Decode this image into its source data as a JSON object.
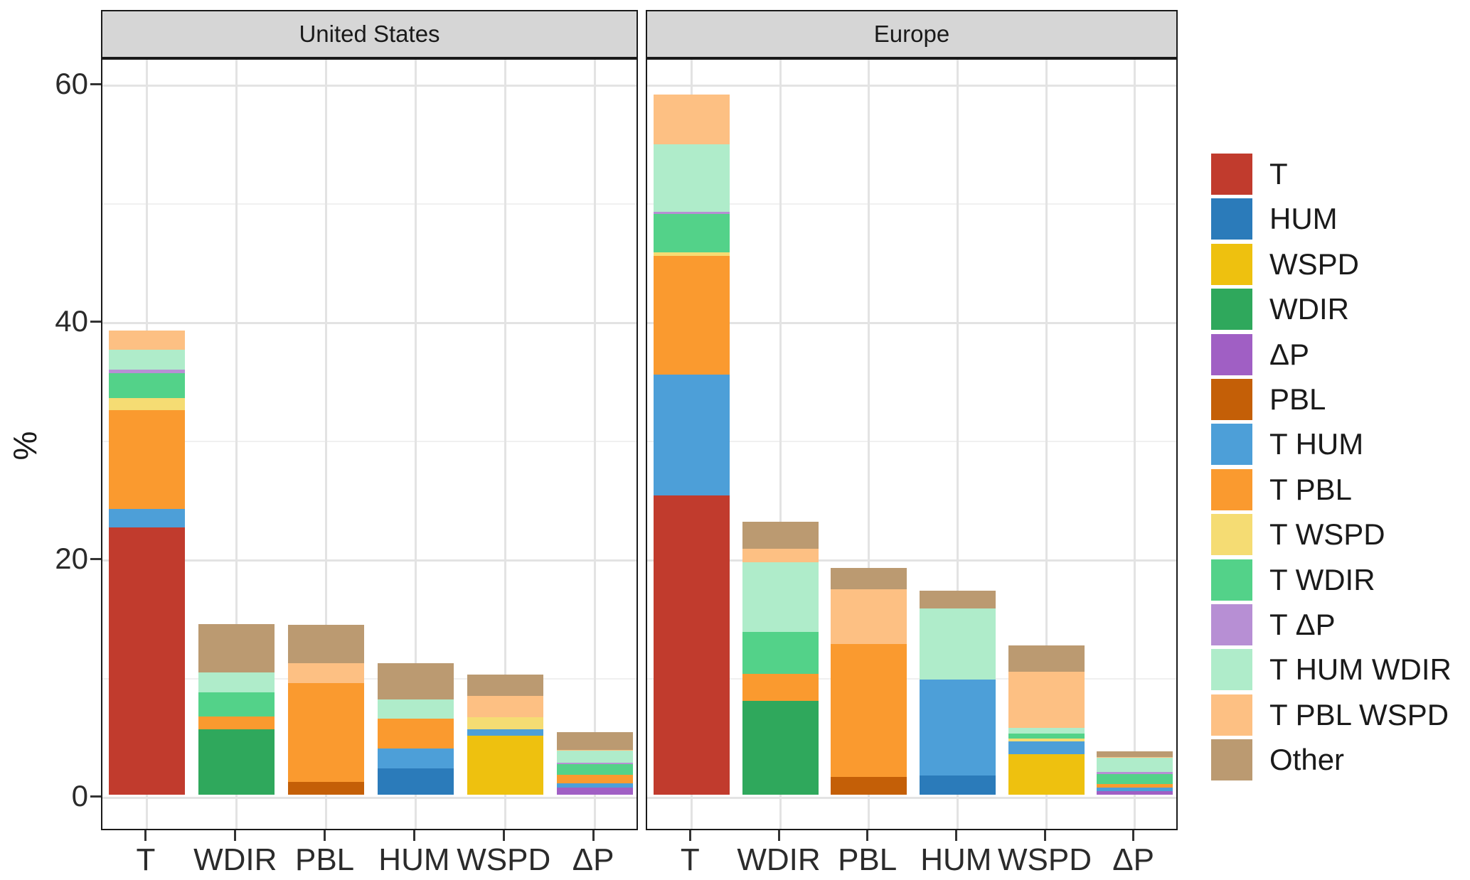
{
  "figure": {
    "background": "#ffffff",
    "panel_background": "#ffffff",
    "strip_background": "#d6d6d6",
    "border_color": "#1a1a1a",
    "major_grid_color": "#e3e3e3",
    "minor_grid_color": "#f0f0f0"
  },
  "y_axis": {
    "title": "%",
    "tick_labels": [
      "0",
      "20",
      "40",
      "60"
    ],
    "tick_values": [
      0,
      20,
      40,
      60
    ],
    "minor_values": [
      10,
      30,
      50
    ]
  },
  "x_axis": {
    "categories": [
      "T",
      "WDIR",
      "PBL",
      "HUM",
      "WSPD",
      "ΔP"
    ]
  },
  "legend": {
    "items": [
      {
        "label": "T",
        "color": "#c13b2d"
      },
      {
        "label": "HUM",
        "color": "#2b7bba"
      },
      {
        "label": "WSPD",
        "color": "#eec10f"
      },
      {
        "label": "WDIR",
        "color": "#2fa85c"
      },
      {
        "label": "ΔP",
        "color": "#a05fc4"
      },
      {
        "label": "PBL",
        "color": "#c45f07"
      },
      {
        "label": "T HUM",
        "color": "#4d9fd8"
      },
      {
        "label": "T PBL",
        "color": "#fa9a2f"
      },
      {
        "label": "T WSPD",
        "color": "#f5dc73"
      },
      {
        "label": "T WDIR",
        "color": "#53d289"
      },
      {
        "label": "T ΔP",
        "color": "#b78fd4"
      },
      {
        "label": "T HUM WDIR",
        "color": "#afecca"
      },
      {
        "label": "T PBL WSPD",
        "color": "#fdc083"
      },
      {
        "label": "Other",
        "color": "#bb9a71"
      }
    ]
  },
  "chart_data": {
    "type": "bar",
    "stacked": true,
    "categories": [
      "T",
      "WDIR",
      "PBL",
      "HUM",
      "WSPD",
      "ΔP"
    ],
    "stack_order": [
      "T",
      "HUM",
      "WSPD",
      "WDIR",
      "ΔP",
      "PBL",
      "T HUM",
      "T PBL",
      "T WSPD",
      "T WDIR",
      "T ΔP",
      "T HUM WDIR",
      "T PBL WSPD",
      "Other"
    ],
    "colors": {
      "T": "#c13b2d",
      "HUM": "#2b7bba",
      "WSPD": "#eec10f",
      "WDIR": "#2fa85c",
      "ΔP": "#a05fc4",
      "PBL": "#c45f07",
      "T HUM": "#4d9fd8",
      "T PBL": "#fa9a2f",
      "T WSPD": "#f5dc73",
      "T WDIR": "#53d289",
      "T ΔP": "#b78fd4",
      "T HUM WDIR": "#afecca",
      "T PBL WSPD": "#fdc083",
      "Other": "#bb9a71"
    },
    "ylabel": "%",
    "ylim": [
      0,
      62
    ],
    "grid": true,
    "legend_position": "right",
    "facets": [
      {
        "title": "United States",
        "bars": {
          "T": {
            "T": 22.5,
            "T HUM": 1.6,
            "T PBL": 8.3,
            "T WSPD": 1.0,
            "T WDIR": 2.1,
            "T ΔP": 0.3,
            "T HUM WDIR": 1.7,
            "T PBL WSPD": 1.6
          },
          "WDIR": {
            "WDIR": 5.5,
            "T PBL": 1.1,
            "T WDIR": 2.0,
            "T HUM WDIR": 1.7,
            "Other": 4.1
          },
          "PBL": {
            "PBL": 1.1,
            "T PBL": 8.3,
            "T PBL WSPD": 1.7,
            "Other": 3.2
          },
          "HUM": {
            "HUM": 2.2,
            "T HUM": 1.7,
            "T PBL": 2.5,
            "T HUM WDIR": 1.6,
            "Other": 3.1
          },
          "WSPD": {
            "WSPD": 5.0,
            "T HUM": 0.5,
            "T WSPD": 1.0,
            "T PBL WSPD": 1.8,
            "Other": 1.8
          },
          "ΔP": {
            "ΔP": 0.6,
            "T HUM": 0.35,
            "T PBL": 0.7,
            "T WDIR": 0.9,
            "T ΔP": 0.15,
            "T HUM WDIR": 1.0,
            "T PBL WSPD": 0.1,
            "Other": 1.5
          }
        }
      },
      {
        "title": "Europe",
        "bars": {
          "T": {
            "T": 25.2,
            "T HUM": 10.2,
            "T PBL": 10.0,
            "T WSPD": 0.3,
            "T WDIR": 3.2,
            "T ΔP": 0.2,
            "T HUM WDIR": 5.7,
            "T PBL WSPD": 4.2
          },
          "WDIR": {
            "WDIR": 7.9,
            "T PBL": 2.3,
            "T WDIR": 3.5,
            "T HUM WDIR": 5.9,
            "T PBL WSPD": 1.1,
            "Other": 2.3
          },
          "PBL": {
            "PBL": 1.5,
            "T PBL": 11.2,
            "T PBL WSPD": 4.6,
            "Other": 1.8
          },
          "HUM": {
            "HUM": 1.6,
            "T HUM": 8.1,
            "T HUM WDIR": 6.0,
            "Other": 1.5
          },
          "WSPD": {
            "WSPD": 3.4,
            "T HUM": 1.1,
            "T WSPD": 0.25,
            "T WDIR": 0.4,
            "T HUM WDIR": 0.5,
            "T PBL WSPD": 4.7,
            "Other": 2.2
          },
          "ΔP": {
            "ΔP": 0.3,
            "T HUM": 0.3,
            "T PBL": 0.3,
            "T WDIR": 0.85,
            "T ΔP": 0.15,
            "T HUM WDIR": 1.2,
            "T PBL WSPD": 0.1,
            "Other": 0.45
          }
        }
      }
    ]
  }
}
